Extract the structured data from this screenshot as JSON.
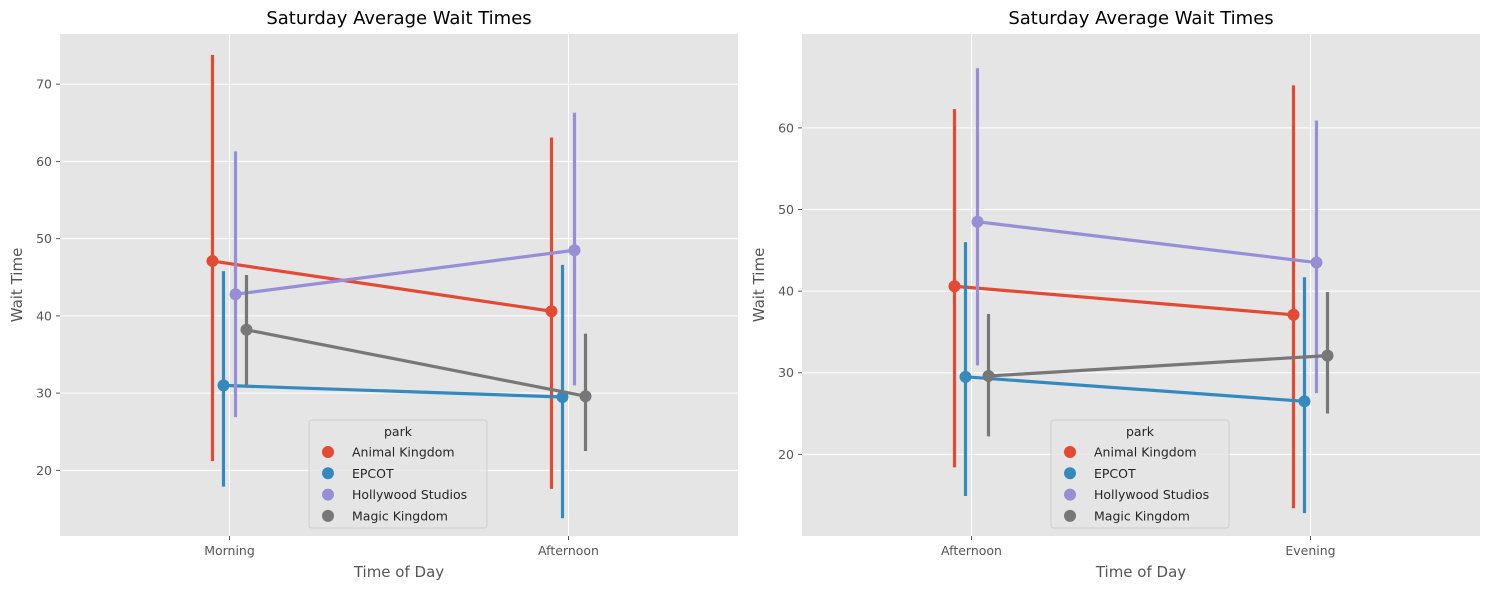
{
  "chart_data": [
    {
      "type": "pointplot",
      "title": "Saturday Average Wait Times",
      "xlabel": "Time of Day",
      "ylabel": "Wait Time",
      "categories": [
        "Morning",
        "Afternoon"
      ],
      "yticks": [
        20,
        30,
        40,
        50,
        60,
        70
      ],
      "ylim": [
        11.5,
        76.5
      ],
      "grid": true,
      "legend": {
        "title": "park",
        "placement": "lower center"
      },
      "series": [
        {
          "name": "Animal Kingdom",
          "color": "#E24A33",
          "values": [
            47.1,
            40.6
          ],
          "ci_low": [
            21.2,
            17.6
          ],
          "ci_high": [
            73.8,
            63.1
          ]
        },
        {
          "name": "EPCOT",
          "color": "#348ABD",
          "values": [
            31.0,
            29.5
          ],
          "ci_low": [
            17.9,
            13.8
          ],
          "ci_high": [
            45.8,
            46.6
          ]
        },
        {
          "name": "Hollywood Studios",
          "color": "#988ED5",
          "values": [
            42.8,
            48.5
          ],
          "ci_low": [
            26.9,
            31.0
          ],
          "ci_high": [
            61.3,
            66.3
          ]
        },
        {
          "name": "Magic Kingdom",
          "color": "#777777",
          "values": [
            38.2,
            29.6
          ],
          "ci_low": [
            31.0,
            22.5
          ],
          "ci_high": [
            45.3,
            37.7
          ]
        }
      ]
    },
    {
      "type": "pointplot",
      "title": "Saturday Average Wait Times",
      "xlabel": "Time of Day",
      "ylabel": "Wait Time",
      "categories": [
        "Afternoon",
        "Evening"
      ],
      "yticks": [
        20,
        30,
        40,
        50,
        60
      ],
      "ylim": [
        10.0,
        71.5
      ],
      "grid": true,
      "legend": {
        "title": "park",
        "placement": "lower center"
      },
      "series": [
        {
          "name": "Animal Kingdom",
          "color": "#E24A33",
          "values": [
            40.6,
            37.1
          ],
          "ci_low": [
            18.4,
            13.4
          ],
          "ci_high": [
            62.3,
            65.2
          ]
        },
        {
          "name": "EPCOT",
          "color": "#348ABD",
          "values": [
            29.5,
            26.5
          ],
          "ci_low": [
            14.9,
            12.8
          ],
          "ci_high": [
            46.0,
            41.7
          ]
        },
        {
          "name": "Hollywood Studios",
          "color": "#988ED5",
          "values": [
            48.5,
            43.5
          ],
          "ci_low": [
            30.9,
            27.5
          ],
          "ci_high": [
            67.3,
            60.9
          ]
        },
        {
          "name": "Magic Kingdom",
          "color": "#777777",
          "values": [
            29.6,
            32.1
          ],
          "ci_low": [
            22.2,
            25.0
          ],
          "ci_high": [
            37.2,
            39.9
          ]
        }
      ]
    }
  ]
}
